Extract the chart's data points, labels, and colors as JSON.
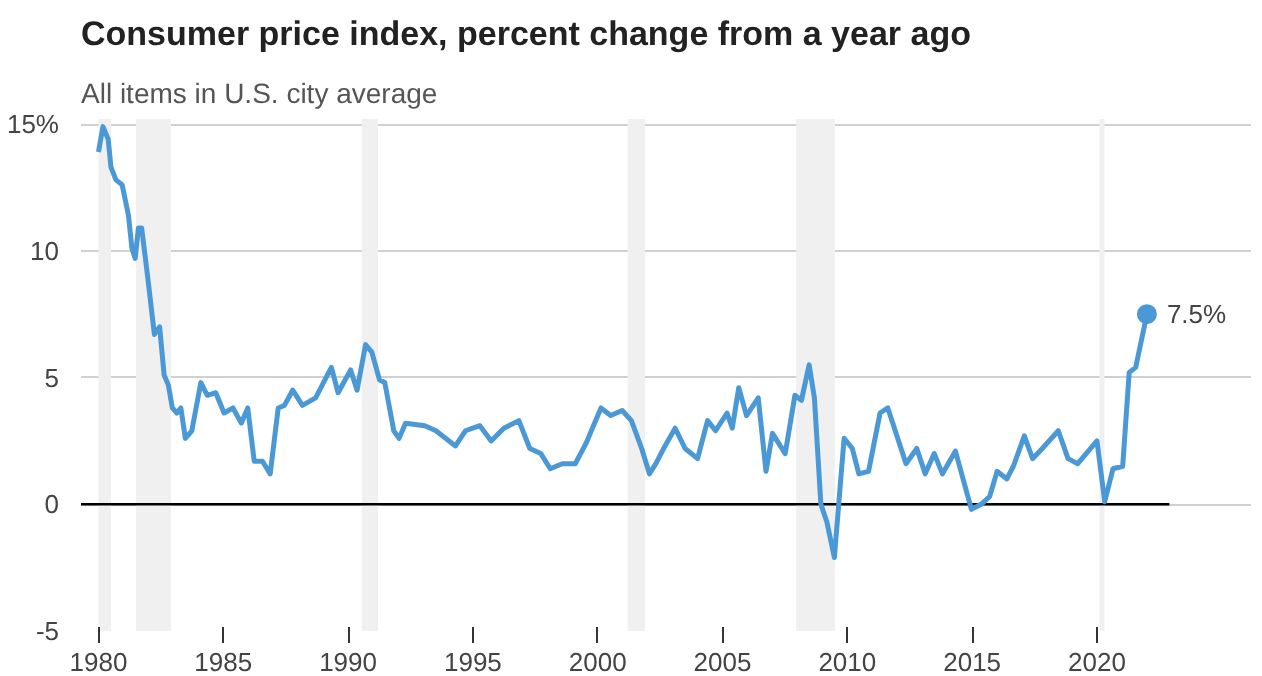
{
  "chart_data": {
    "type": "line",
    "title": "Consumer price index, percent change from a year ago",
    "subtitle": "All items in U.S. city average",
    "x": [
      1980.0,
      1980.18,
      1980.39,
      1980.5,
      1980.7,
      1980.95,
      1981.2,
      1981.34,
      1981.47,
      1981.6,
      1981.73,
      1981.98,
      1982.24,
      1982.45,
      1982.63,
      1982.8,
      1982.96,
      1983.14,
      1983.3,
      1983.48,
      1983.74,
      1984.1,
      1984.36,
      1984.7,
      1985.03,
      1985.39,
      1985.72,
      1985.98,
      1986.24,
      1986.57,
      1986.88,
      1987.2,
      1987.45,
      1987.78,
      1988.17,
      1988.7,
      1989.33,
      1989.6,
      1990.1,
      1990.36,
      1990.7,
      1990.95,
      1991.26,
      1991.47,
      1991.83,
      1992.04,
      1992.3,
      1993.07,
      1993.52,
      1994.3,
      1994.7,
      1995.28,
      1995.73,
      1996.24,
      1996.84,
      1997.28,
      1997.72,
      1998.1,
      1998.58,
      1999.1,
      1999.53,
      2000.13,
      2000.52,
      2000.98,
      2001.35,
      2001.76,
      2002.07,
      2002.33,
      2002.64,
      2003.1,
      2003.5,
      2004.0,
      2004.4,
      2004.72,
      2005.18,
      2005.39,
      2005.65,
      2005.96,
      2006.43,
      2006.74,
      2007.0,
      2007.51,
      2007.9,
      2008.16,
      2008.47,
      2008.68,
      2008.94,
      2009.18,
      2009.48,
      2009.87,
      2010.2,
      2010.46,
      2010.85,
      2011.31,
      2011.62,
      2012.35,
      2012.78,
      2013.12,
      2013.48,
      2013.81,
      2014.33,
      2014.97,
      2015.36,
      2015.7,
      2016.0,
      2016.39,
      2016.65,
      2017.09,
      2017.42,
      2017.81,
      2018.45,
      2018.84,
      2019.23,
      2020.0,
      2020.31,
      2020.64,
      2021.03,
      2021.29,
      2021.55,
      2022.0
    ],
    "series": [
      {
        "color": "#4a98d6",
        "values": [
          13.9,
          14.9,
          14.4,
          13.3,
          12.8,
          12.6,
          11.4,
          10.1,
          9.7,
          10.9,
          10.9,
          8.9,
          6.7,
          7.0,
          5.1,
          4.7,
          3.8,
          3.6,
          3.8,
          2.6,
          2.9,
          4.8,
          4.3,
          4.4,
          3.6,
          3.8,
          3.2,
          3.8,
          1.7,
          1.7,
          1.2,
          3.8,
          3.9,
          4.5,
          3.9,
          4.2,
          5.4,
          4.4,
          5.3,
          4.5,
          6.3,
          6.0,
          4.9,
          4.8,
          2.9,
          2.6,
          3.2,
          3.1,
          2.9,
          2.3,
          2.9,
          3.1,
          2.5,
          3.0,
          3.3,
          2.2,
          2.0,
          1.4,
          1.6,
          1.6,
          2.4,
          3.8,
          3.5,
          3.7,
          3.3,
          2.2,
          1.2,
          1.6,
          2.2,
          3.0,
          2.2,
          1.8,
          3.3,
          2.9,
          3.6,
          3.0,
          4.6,
          3.5,
          4.2,
          1.3,
          2.8,
          2.0,
          4.3,
          4.1,
          5.5,
          4.2,
          0.0,
          -0.7,
          -2.1,
          2.6,
          2.2,
          1.2,
          1.3,
          3.6,
          3.8,
          1.6,
          2.2,
          1.2,
          2.0,
          1.2,
          2.1,
          -0.2,
          0.0,
          0.3,
          1.3,
          1.0,
          1.5,
          2.7,
          1.8,
          2.2,
          2.9,
          1.8,
          1.6,
          2.5,
          0.1,
          1.4,
          1.5,
          5.2,
          5.4,
          7.5
        ]
      }
    ],
    "xlim": [
      1979.3,
      2022.9
    ],
    "xticks": [
      1980,
      1985,
      1990,
      1995,
      2000,
      2005,
      2010,
      2015,
      2020
    ],
    "ylim": [
      -5,
      15.2
    ],
    "yticks": [
      -5,
      0,
      5,
      10,
      {
        "value": 15,
        "label": "15%"
      }
    ],
    "grid": "y",
    "line_style": "solid",
    "marker": "none",
    "ref_lines": [
      {
        "axis": "y",
        "value": 0,
        "color": "#000000"
      }
    ],
    "bands": [
      {
        "axis": "x",
        "from": 1980.0,
        "to": 1980.5,
        "color": "#f0f0f0"
      },
      {
        "axis": "x",
        "from": 1981.5,
        "to": 1982.9,
        "color": "#f0f0f0"
      },
      {
        "axis": "x",
        "from": 1990.55,
        "to": 1991.2,
        "color": "#f0f0f0"
      },
      {
        "axis": "x",
        "from": 2001.2,
        "to": 2001.9,
        "color": "#f0f0f0"
      },
      {
        "axis": "x",
        "from": 2007.95,
        "to": 2009.5,
        "color": "#f0f0f0"
      },
      {
        "axis": "x",
        "from": 2020.1,
        "to": 2020.3,
        "color": "#f0f0f0"
      }
    ],
    "annotations": [
      {
        "text": "7.5%",
        "x": 2022.0,
        "y": 7.5
      }
    ]
  }
}
